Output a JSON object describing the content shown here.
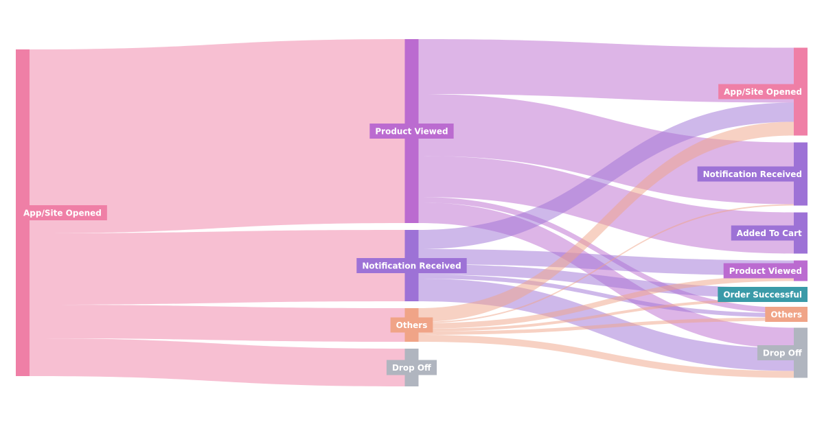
{
  "chart_data": {
    "type": "sankey",
    "nodes": [
      {
        "name": "App/Site Opened",
        "color": "#ef7fa6"
      },
      {
        "name": "Product Viewed",
        "color": "#bb6bd0"
      },
      {
        "name": "Notification Received",
        "color": "#9d72d6"
      },
      {
        "name": "Others",
        "color": "#f0a487"
      },
      {
        "name": "Drop Off",
        "color": "#b0b5bf"
      },
      {
        "name": "App/Site Opened",
        "color": "#ef7fa6"
      },
      {
        "name": "Notification Received",
        "color": "#9d72d6"
      },
      {
        "name": "Added To Cart",
        "color": "#9d72d6"
      },
      {
        "name": "Product Viewed",
        "color": "#bb6bd0"
      },
      {
        "name": "Order Successful",
        "color": "#3a9aa8"
      },
      {
        "name": "Others",
        "color": "#f0a487"
      },
      {
        "name": "Drop Off",
        "color": "#b0b5bf"
      }
    ],
    "links": [
      {
        "source": 0,
        "target": 1,
        "value": 268
      },
      {
        "source": 0,
        "target": 2,
        "value": 104
      },
      {
        "source": 0,
        "target": 3,
        "value": 49
      },
      {
        "source": 0,
        "target": 4,
        "value": 55
      },
      {
        "source": 1,
        "target": 5,
        "value": 80
      },
      {
        "source": 1,
        "target": 6,
        "value": 90
      },
      {
        "source": 1,
        "target": 7,
        "value": 60
      },
      {
        "source": 1,
        "target": 10,
        "value": 8
      },
      {
        "source": 1,
        "target": 11,
        "value": 30
      },
      {
        "source": 2,
        "target": 5,
        "value": 28
      },
      {
        "source": 2,
        "target": 8,
        "value": 22
      },
      {
        "source": 2,
        "target": 9,
        "value": 15
      },
      {
        "source": 2,
        "target": 10,
        "value": 6
      },
      {
        "source": 2,
        "target": 11,
        "value": 33
      },
      {
        "source": 3,
        "target": 5,
        "value": 20
      },
      {
        "source": 3,
        "target": 6,
        "value": 2
      },
      {
        "source": 3,
        "target": 8,
        "value": 8
      },
      {
        "source": 3,
        "target": 9,
        "value": 4
      },
      {
        "source": 3,
        "target": 10,
        "value": 5
      },
      {
        "source": 3,
        "target": 11,
        "value": 10
      }
    ]
  }
}
